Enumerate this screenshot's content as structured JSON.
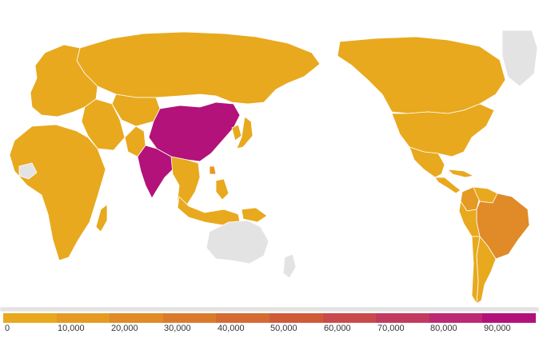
{
  "map": {
    "projection": "world map centered on the Pacific",
    "no_data_color": "#e3e3e3",
    "legend": {
      "min": 0,
      "max": 100000,
      "step": 10000,
      "tick_labels": [
        "0",
        "10,000",
        "20,000",
        "30,000",
        "40,000",
        "50,000",
        "60,000",
        "70,000",
        "80,000",
        "90,000"
      ],
      "colors": [
        "#e8a91e",
        "#e59a23",
        "#e08a28",
        "#db7a2d",
        "#d56a33",
        "#cf5a3a",
        "#c94a4c",
        "#c23a60",
        "#bb2a72",
        "#b2127a"
      ]
    },
    "regions": [
      {
        "name": "Canada",
        "value": 600
      },
      {
        "name": "Greenland",
        "value": null
      },
      {
        "name": "United States",
        "value": 1500
      },
      {
        "name": "Mexico",
        "value": 900
      },
      {
        "name": "Central America and Caribbean",
        "value": 500
      },
      {
        "name": "Colombia",
        "value": 12000
      },
      {
        "name": "Venezuela",
        "value": 9000
      },
      {
        "name": "Brazil",
        "value": 24000
      },
      {
        "name": "Peru",
        "value": 7000
      },
      {
        "name": "Argentina",
        "value": 1500
      },
      {
        "name": "Chile",
        "value": 800
      },
      {
        "name": "Russia",
        "value": 1200
      },
      {
        "name": "Europe",
        "value": 500
      },
      {
        "name": "Middle East",
        "value": 1500
      },
      {
        "name": "Africa",
        "value": 1800
      },
      {
        "name": "Western Sahara",
        "value": null
      },
      {
        "name": "Madagascar",
        "value": 2500
      },
      {
        "name": "Central Asia",
        "value": 600
      },
      {
        "name": "China",
        "value": 95000
      },
      {
        "name": "India",
        "value": 90000
      },
      {
        "name": "Pakistan",
        "value": 3000
      },
      {
        "name": "Japan",
        "value": 1200
      },
      {
        "name": "Korea",
        "value": 900
      },
      {
        "name": "Taiwan",
        "value": 12000
      },
      {
        "name": "Southeast Asia",
        "value": 4000
      },
      {
        "name": "Philippines",
        "value": 6000
      },
      {
        "name": "Indonesia",
        "value": 8000
      },
      {
        "name": "Papua New Guinea",
        "value": 4000
      },
      {
        "name": "Australia",
        "value": null
      },
      {
        "name": "New Zealand",
        "value": null
      },
      {
        "name": "Antarctica",
        "value": null
      }
    ]
  }
}
